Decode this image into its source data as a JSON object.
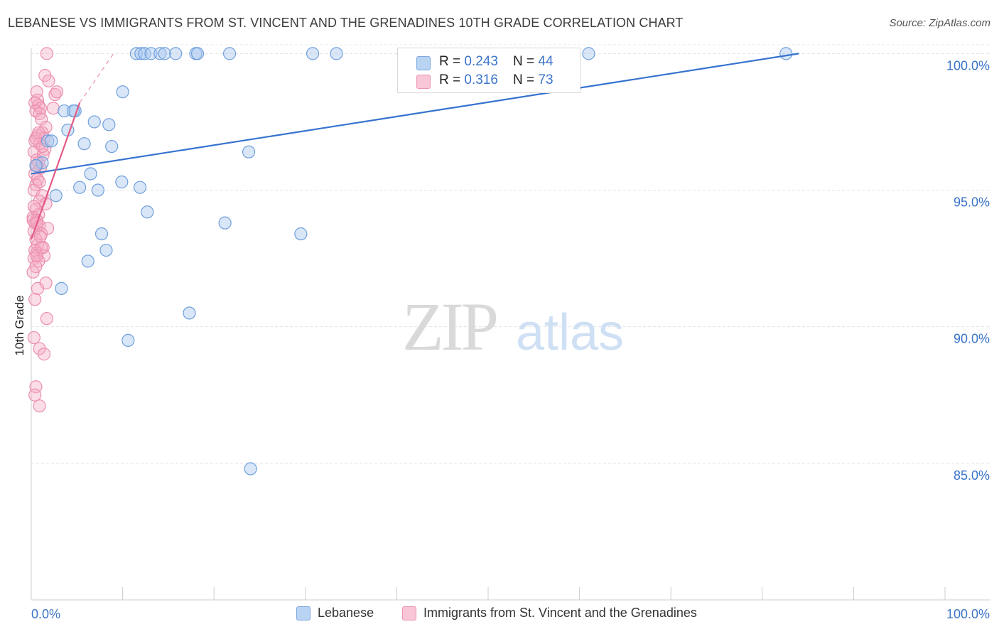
{
  "title": "LEBANESE VS IMMIGRANTS FROM ST. VINCENT AND THE GRENADINES 10TH GRADE CORRELATION CHART",
  "source": "Source: ZipAtlas.com",
  "watermark": {
    "zip": "ZIP",
    "atlas": "atlas"
  },
  "legend": {
    "rows": [
      {
        "r_label": "R = ",
        "r_value": "0.243",
        "n_label": "N = ",
        "n_value": "44"
      },
      {
        "r_label": "R = ",
        "r_value": "0.316",
        "n_label": "N = ",
        "n_value": "73"
      }
    ]
  },
  "colors": {
    "blue": "#4a86d8",
    "blue_fill": "#a9c8f0",
    "pink": "#e8608a",
    "pink_fill": "#f5b3c8",
    "tick_text": "#3a74c8"
  },
  "chart_data": {
    "type": "scatter",
    "title": "LEBANESE VS IMMIGRANTS FROM ST. VINCENT AND THE GRENADINES 10TH GRADE CORRELATION CHART",
    "xlabel": "",
    "ylabel": "10th Grade",
    "xlim": [
      0,
      100
    ],
    "ylim": [
      80.0,
      100.4
    ],
    "x_tick_labels": [
      "0.0%",
      "100.0%"
    ],
    "y_ticks": [
      85,
      90,
      95,
      100
    ],
    "y_tick_labels": [
      "85.0%",
      "90.0%",
      "95.0%",
      "100.0%"
    ],
    "grid": true,
    "legend_position": "top-center",
    "series": [
      {
        "name": "Lebanese",
        "color": "#4a86d8",
        "points": [
          [
            11.5,
            100.0
          ],
          [
            12.0,
            100.0
          ],
          [
            12.4,
            100.0
          ],
          [
            13.1,
            100.0
          ],
          [
            14.1,
            100.0
          ],
          [
            14.6,
            100.0
          ],
          [
            15.8,
            100.0
          ],
          [
            18.0,
            100.0
          ],
          [
            18.2,
            100.0
          ],
          [
            21.7,
            100.0
          ],
          [
            30.8,
            100.0
          ],
          [
            33.4,
            100.0
          ],
          [
            61.0,
            100.0
          ],
          [
            82.6,
            100.0
          ],
          [
            10.0,
            98.6
          ],
          [
            3.6,
            97.9
          ],
          [
            4.8,
            97.9
          ],
          [
            4.6,
            97.9
          ],
          [
            6.9,
            97.5
          ],
          [
            8.5,
            97.4
          ],
          [
            4.0,
            97.2
          ],
          [
            1.8,
            96.8
          ],
          [
            2.2,
            96.8
          ],
          [
            5.8,
            96.7
          ],
          [
            8.8,
            96.6
          ],
          [
            23.8,
            96.4
          ],
          [
            1.2,
            96.0
          ],
          [
            6.5,
            95.6
          ],
          [
            9.9,
            95.3
          ],
          [
            5.3,
            95.1
          ],
          [
            11.9,
            95.1
          ],
          [
            7.3,
            95.0
          ],
          [
            2.7,
            94.8
          ],
          [
            12.7,
            94.2
          ],
          [
            21.2,
            93.8
          ],
          [
            7.7,
            93.4
          ],
          [
            29.5,
            93.4
          ],
          [
            8.2,
            92.8
          ],
          [
            6.2,
            92.4
          ],
          [
            3.3,
            91.4
          ],
          [
            17.3,
            90.5
          ],
          [
            10.6,
            89.5
          ],
          [
            24.0,
            84.8
          ],
          [
            0.5,
            95.9
          ]
        ],
        "trend": {
          "x": [
            0,
            84
          ],
          "y": [
            95.6,
            100.0
          ]
        }
      },
      {
        "name": "Immigrants from St. Vincent and the Grenadines",
        "color": "#e8608a",
        "points": [
          [
            1.7,
            100.0
          ],
          [
            1.5,
            99.2
          ],
          [
            1.9,
            99.0
          ],
          [
            0.6,
            98.6
          ],
          [
            2.6,
            98.5
          ],
          [
            0.7,
            98.3
          ],
          [
            0.4,
            98.2
          ],
          [
            0.8,
            98.1
          ],
          [
            1.0,
            98.0
          ],
          [
            0.5,
            97.9
          ],
          [
            0.9,
            97.8
          ],
          [
            2.4,
            98.0
          ],
          [
            1.1,
            97.6
          ],
          [
            1.6,
            97.3
          ],
          [
            1.2,
            97.1
          ],
          [
            0.7,
            97.0
          ],
          [
            1.4,
            96.9
          ],
          [
            0.4,
            96.8
          ],
          [
            0.9,
            96.7
          ],
          [
            1.5,
            96.5
          ],
          [
            0.3,
            96.4
          ],
          [
            1.3,
            96.3
          ],
          [
            0.6,
            96.1
          ],
          [
            0.8,
            96.0
          ],
          [
            1.0,
            95.8
          ],
          [
            0.4,
            95.6
          ],
          [
            0.7,
            95.4
          ],
          [
            0.5,
            95.2
          ],
          [
            0.3,
            95.0
          ],
          [
            1.2,
            94.8
          ],
          [
            0.9,
            94.6
          ],
          [
            1.6,
            94.5
          ],
          [
            0.5,
            94.3
          ],
          [
            0.8,
            94.1
          ],
          [
            0.2,
            94.0
          ],
          [
            0.6,
            93.9
          ],
          [
            0.4,
            93.8
          ],
          [
            0.9,
            93.7
          ],
          [
            1.8,
            93.6
          ],
          [
            0.3,
            93.5
          ],
          [
            1.1,
            93.4
          ],
          [
            0.5,
            93.2
          ],
          [
            0.7,
            93.0
          ],
          [
            1.3,
            92.9
          ],
          [
            0.4,
            92.8
          ],
          [
            0.6,
            92.7
          ],
          [
            1.4,
            92.6
          ],
          [
            0.3,
            92.5
          ],
          [
            0.8,
            92.4
          ],
          [
            0.5,
            92.2
          ],
          [
            0.2,
            92.0
          ],
          [
            1.6,
            91.6
          ],
          [
            0.7,
            91.4
          ],
          [
            0.4,
            91.0
          ],
          [
            1.7,
            90.3
          ],
          [
            0.3,
            89.6
          ],
          [
            0.9,
            89.2
          ],
          [
            1.4,
            89.0
          ],
          [
            0.5,
            87.8
          ],
          [
            0.4,
            87.5
          ],
          [
            0.9,
            87.1
          ],
          [
            2.8,
            98.6
          ],
          [
            1.2,
            96.6
          ],
          [
            0.6,
            95.9
          ],
          [
            0.9,
            95.3
          ],
          [
            0.3,
            94.4
          ],
          [
            1.0,
            93.3
          ],
          [
            0.6,
            92.6
          ],
          [
            0.2,
            93.9
          ],
          [
            1.1,
            92.9
          ],
          [
            0.5,
            96.9
          ],
          [
            0.8,
            97.1
          ],
          [
            0.6,
            93.8
          ]
        ],
        "trend_solid": {
          "x": [
            0,
            5.3
          ],
          "y": [
            93.2,
            98.2
          ]
        },
        "trend_dashed": {
          "x": [
            5.3,
            9.0
          ],
          "y": [
            98.2,
            100.0
          ]
        }
      }
    ]
  },
  "bottom_legend": [
    {
      "label": "Lebanese"
    },
    {
      "label": "Immigrants from St. Vincent and the Grenadines"
    }
  ]
}
